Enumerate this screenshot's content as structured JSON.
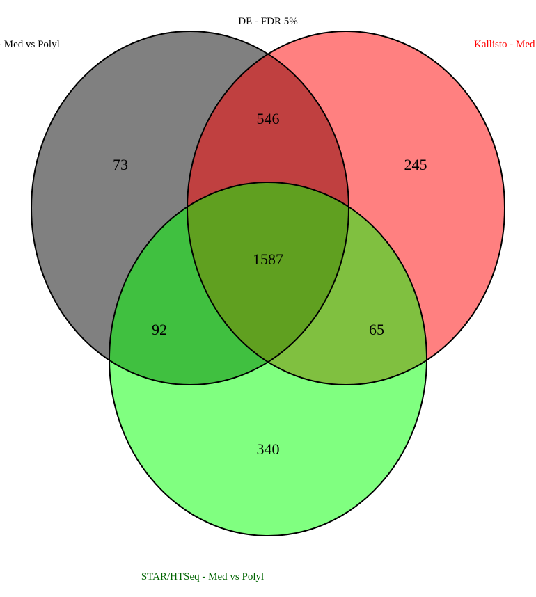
{
  "chart_data": {
    "type": "venn",
    "title": "DE - FDR 5%",
    "sets": [
      {
        "name": "- Med vs Polyl",
        "color": "#000000",
        "fill": "#808080"
      },
      {
        "name": "Kallisto - Med",
        "color": "#ff0000",
        "fill": "#ff8080"
      },
      {
        "name": "STAR/HTSeq - Med vs Polyl",
        "color": "#006400",
        "fill": "#80ff80"
      }
    ],
    "regions": {
      "A_only": 73,
      "B_only": 245,
      "C_only": 340,
      "AB_only": 546,
      "AC_only": 92,
      "BC_only": 65,
      "ABC": 1587
    },
    "overlap_colors": {
      "AB": "#c04040",
      "AC": "#40c040",
      "BC": "#80c040",
      "ABC": "#60a020"
    }
  }
}
